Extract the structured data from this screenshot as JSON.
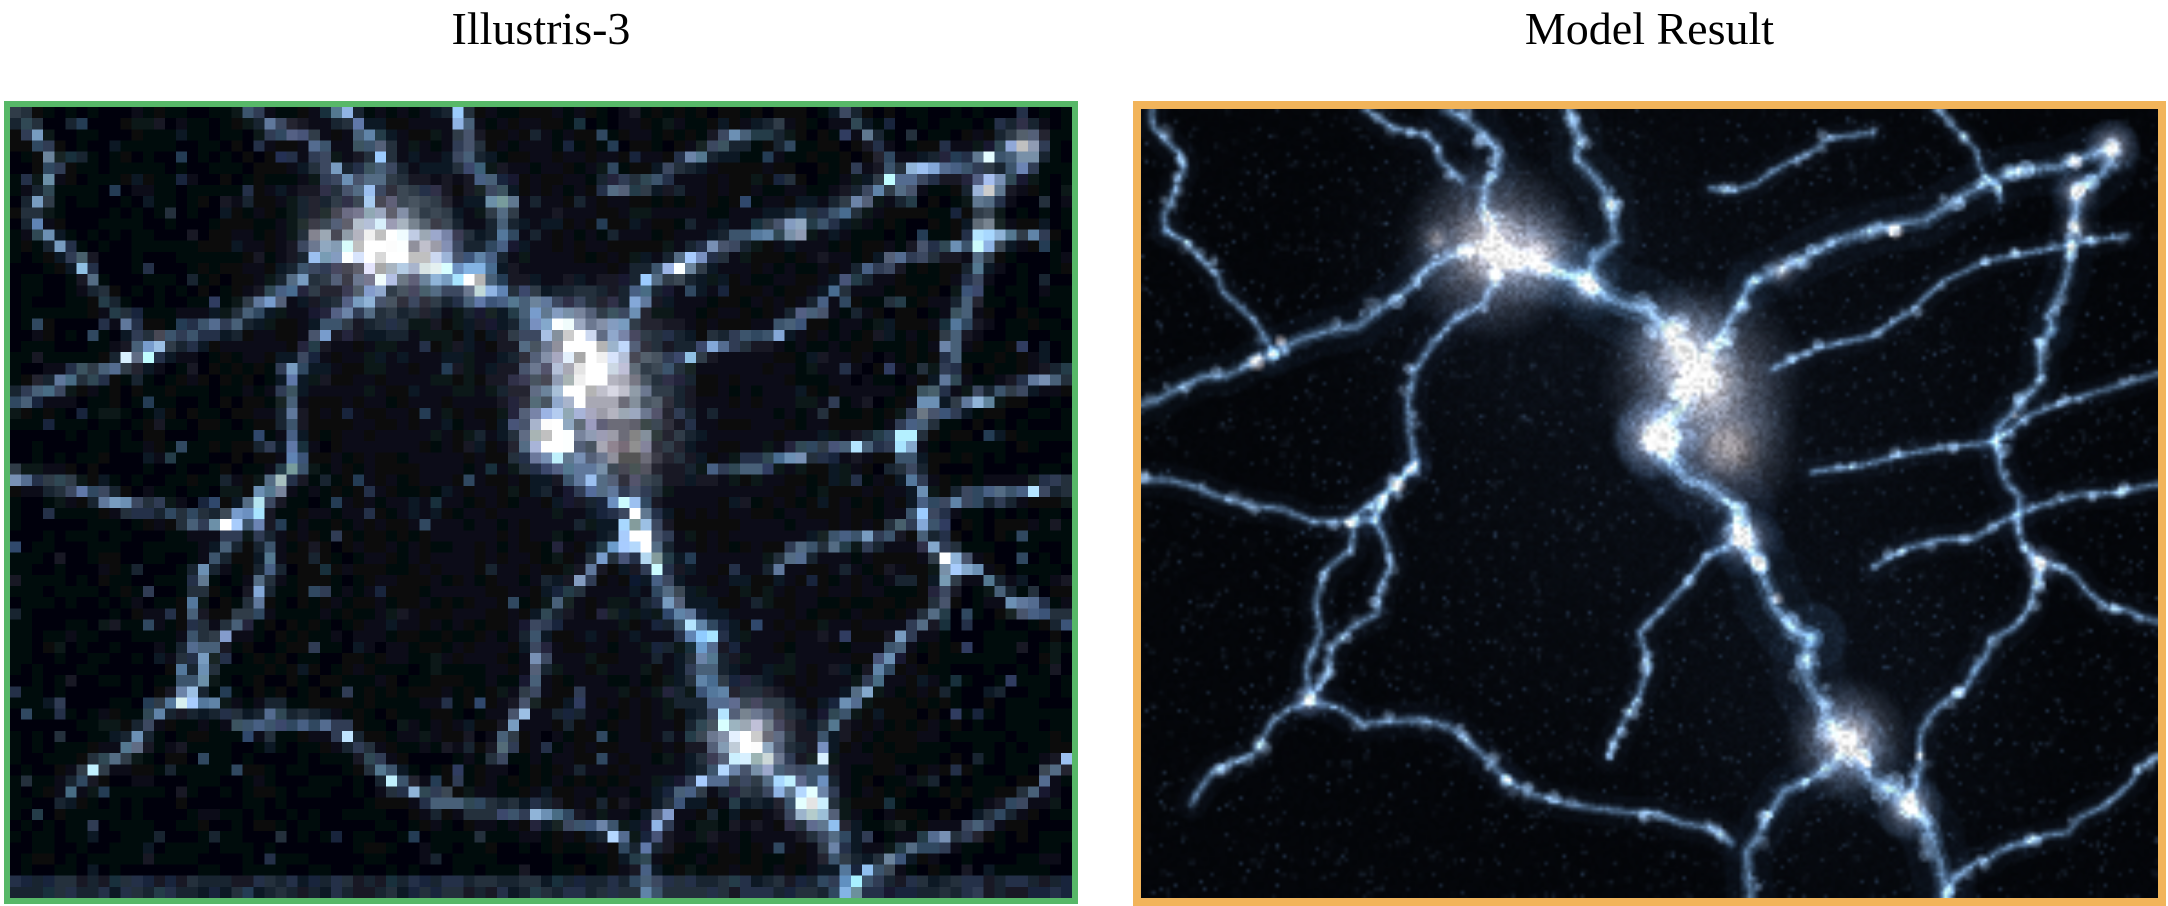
{
  "figure": {
    "type": "side-by-side-comparison",
    "panels": [
      {
        "label": "Illustris-3",
        "border_color": "#57b868",
        "render_style": "pixelated"
      },
      {
        "label": "Model Result",
        "border_color": "#f2b45a",
        "render_style": "smooth"
      }
    ],
    "content_description": "dark-matter density projection of the cosmic web"
  },
  "palette": {
    "page_background": "#ffffff",
    "title_color": "#000000",
    "map_background": "#04060a",
    "filament_glow": [
      30,
      48,
      72
    ],
    "filament_mid": [
      62,
      92,
      122
    ],
    "filament_core": [
      118,
      148,
      178
    ],
    "clump": [
      150,
      176,
      205
    ],
    "clump_bright": [
      235,
      210,
      196
    ],
    "halo_core": [
      252,
      232,
      218
    ],
    "halo_mid": [
      240,
      216,
      202
    ],
    "halo_blue": [
      175,
      180,
      200
    ],
    "halo_outer": [
      90,
      112,
      142
    ],
    "speckle": [
      70,
      95,
      125
    ],
    "ambient": [
      70,
      95,
      135
    ],
    "bottom_strip": [
      44,
      62,
      84
    ]
  },
  "web_structure": {
    "edges": [
      [
        0.42,
        0.0,
        0.44,
        0.22,
        0.55
      ],
      [
        0.44,
        0.22,
        0.552,
        0.335,
        1.0
      ],
      [
        0.345,
        0.175,
        0.44,
        0.225,
        0.8
      ],
      [
        0.3,
        0.0,
        0.345,
        0.175,
        0.5
      ],
      [
        0.22,
        0.0,
        0.315,
        0.09,
        0.3
      ],
      [
        0.345,
        0.175,
        0.13,
        0.31,
        0.5
      ],
      [
        0.13,
        0.31,
        0.0,
        0.375,
        0.4
      ],
      [
        0.13,
        0.31,
        0.025,
        0.155,
        0.25
      ],
      [
        0.345,
        0.175,
        0.27,
        0.45,
        0.33
      ],
      [
        0.27,
        0.45,
        0.165,
        0.75,
        0.3
      ],
      [
        0.552,
        0.335,
        0.505,
        0.415,
        1.0
      ],
      [
        0.505,
        0.415,
        0.594,
        0.545,
        0.9
      ],
      [
        0.594,
        0.545,
        0.66,
        0.67,
        0.8
      ],
      [
        0.66,
        0.67,
        0.695,
        0.8,
        0.85
      ],
      [
        0.695,
        0.8,
        0.755,
        0.885,
        0.8
      ],
      [
        0.755,
        0.885,
        0.79,
        1.0,
        0.7
      ],
      [
        0.695,
        0.8,
        0.6,
        1.0,
        0.5
      ],
      [
        0.594,
        0.545,
        0.46,
        0.82,
        0.28
      ],
      [
        0.0,
        0.47,
        0.23,
        0.52,
        0.3
      ],
      [
        0.23,
        0.52,
        0.27,
        0.45,
        0.25
      ],
      [
        0.23,
        0.52,
        0.165,
        0.75,
        0.3
      ],
      [
        0.165,
        0.75,
        0.05,
        0.88,
        0.28
      ],
      [
        0.165,
        0.75,
        0.36,
        0.85,
        0.33
      ],
      [
        0.36,
        0.85,
        0.58,
        0.93,
        0.3
      ],
      [
        0.6,
        0.22,
        0.955,
        0.048,
        0.6
      ],
      [
        0.552,
        0.335,
        0.6,
        0.22,
        0.45
      ],
      [
        0.955,
        0.048,
        0.92,
        0.105,
        0.6
      ],
      [
        0.92,
        0.105,
        0.895,
        0.28,
        0.5
      ],
      [
        0.895,
        0.28,
        0.84,
        0.42,
        0.4
      ],
      [
        0.84,
        0.42,
        0.885,
        0.575,
        0.35
      ],
      [
        0.885,
        0.575,
        1.0,
        0.65,
        0.25
      ],
      [
        0.885,
        0.575,
        0.82,
        0.71,
        0.3
      ],
      [
        0.82,
        0.71,
        0.755,
        0.885,
        0.3
      ],
      [
        0.62,
        0.33,
        0.97,
        0.16,
        0.22
      ],
      [
        0.66,
        0.46,
        1.0,
        0.335,
        0.22
      ],
      [
        0.72,
        0.58,
        1.0,
        0.475,
        0.25
      ],
      [
        0.78,
        0.0,
        0.845,
        0.115,
        0.2
      ],
      [
        0.56,
        0.1,
        0.72,
        0.03,
        0.2
      ],
      [
        1.0,
        0.82,
        0.87,
        0.93,
        0.25
      ],
      [
        0.87,
        0.93,
        0.79,
        1.0,
        0.28
      ],
      [
        0.01,
        0.0,
        0.025,
        0.155,
        0.28
      ]
    ],
    "halos": [
      [
        0.345,
        0.175,
        0.05,
        1.0
      ],
      [
        0.39,
        0.186,
        0.028,
        0.7
      ],
      [
        0.44,
        0.225,
        0.015,
        0.75
      ],
      [
        0.552,
        0.345,
        0.055,
        0.9
      ],
      [
        0.528,
        0.3,
        0.032,
        0.65
      ],
      [
        0.505,
        0.415,
        0.024,
        1.0
      ],
      [
        0.578,
        0.43,
        0.04,
        0.6
      ],
      [
        0.594,
        0.545,
        0.017,
        0.9
      ],
      [
        0.695,
        0.8,
        0.034,
        0.95
      ],
      [
        0.755,
        0.885,
        0.019,
        0.85
      ],
      [
        0.955,
        0.048,
        0.015,
        0.85
      ],
      [
        0.92,
        0.105,
        0.013,
        0.75
      ],
      [
        0.918,
        0.15,
        0.011,
        0.6
      ],
      [
        0.885,
        0.575,
        0.011,
        0.55
      ],
      [
        0.165,
        0.75,
        0.01,
        0.5
      ],
      [
        0.63,
        0.205,
        0.011,
        0.55
      ],
      [
        0.29,
        0.165,
        0.012,
        0.45
      ]
    ],
    "ambient_glows": [
      [
        0.55,
        0.41,
        0.42,
        0.1
      ],
      [
        0.36,
        0.19,
        0.2,
        0.08
      ],
      [
        0.7,
        0.8,
        0.22,
        0.08
      ]
    ]
  }
}
